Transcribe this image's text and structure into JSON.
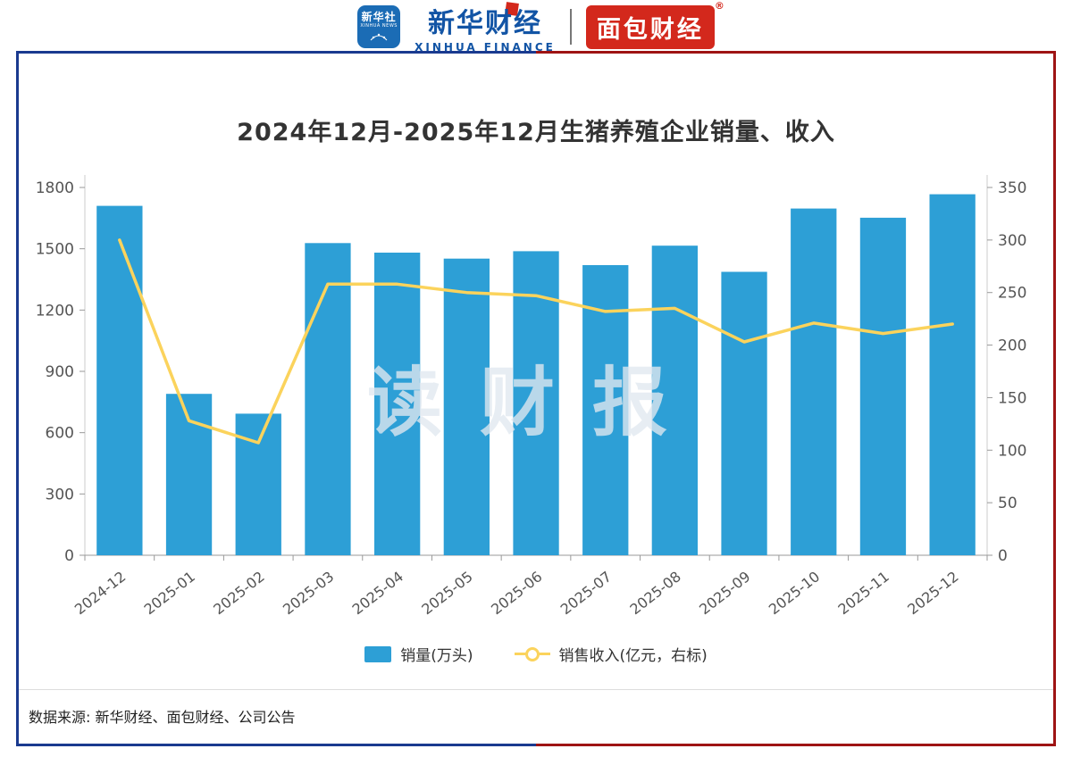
{
  "header": {
    "xinhua_news": {
      "cn": "新华社",
      "en": "XINHUA NEWS"
    },
    "xinhua_finance": {
      "cn": "新华财经",
      "en": "XINHUA FINANCE"
    },
    "mianbao": {
      "cn": "面包财经",
      "reg": "®"
    }
  },
  "chart_data": {
    "type": "bar",
    "title": "2024年12月-2025年12月生猪养殖企业销量、收入",
    "categories": [
      "2024-12",
      "2025-01",
      "2025-02",
      "2025-03",
      "2025-04",
      "2025-05",
      "2025-06",
      "2025-07",
      "2025-08",
      "2025-09",
      "2025-10",
      "2025-11",
      "2025-12"
    ],
    "series": [
      {
        "name": "销量(万头)",
        "type": "bar",
        "axis": "left",
        "color": "#2d9fd6",
        "values": [
          1710,
          790,
          693,
          1528,
          1481,
          1452,
          1488,
          1420,
          1515,
          1387,
          1697,
          1652,
          1767
        ]
      },
      {
        "name": "销售收入(亿元，右标)",
        "type": "line",
        "axis": "right",
        "color": "#fbd35c",
        "values": [
          300,
          128,
          107,
          258,
          258,
          250,
          247,
          232,
          235,
          203,
          221,
          211,
          220
        ]
      }
    ],
    "left_axis": {
      "min": 0,
      "max": 1800,
      "step": 300,
      "ticks": [
        0,
        300,
        600,
        900,
        1200,
        1500,
        1800
      ]
    },
    "right_axis": {
      "min": 0,
      "max": 350,
      "step": 50,
      "ticks": [
        0,
        50,
        100,
        150,
        200,
        250,
        300,
        350
      ]
    },
    "grid": false,
    "legend_position": "bottom"
  },
  "watermark": "读财报",
  "footer": {
    "source": "数据来源: 新华财经、面包财经、公司公告"
  },
  "colors": {
    "bar": "#2d9fd6",
    "line": "#fbd35c",
    "frame_blue": "#1a3a8f",
    "frame_red": "#9e1414",
    "brand_blue": "#1254a5",
    "brand_red": "#d3281c",
    "title_text": "#333333",
    "axis_text": "#555555"
  }
}
